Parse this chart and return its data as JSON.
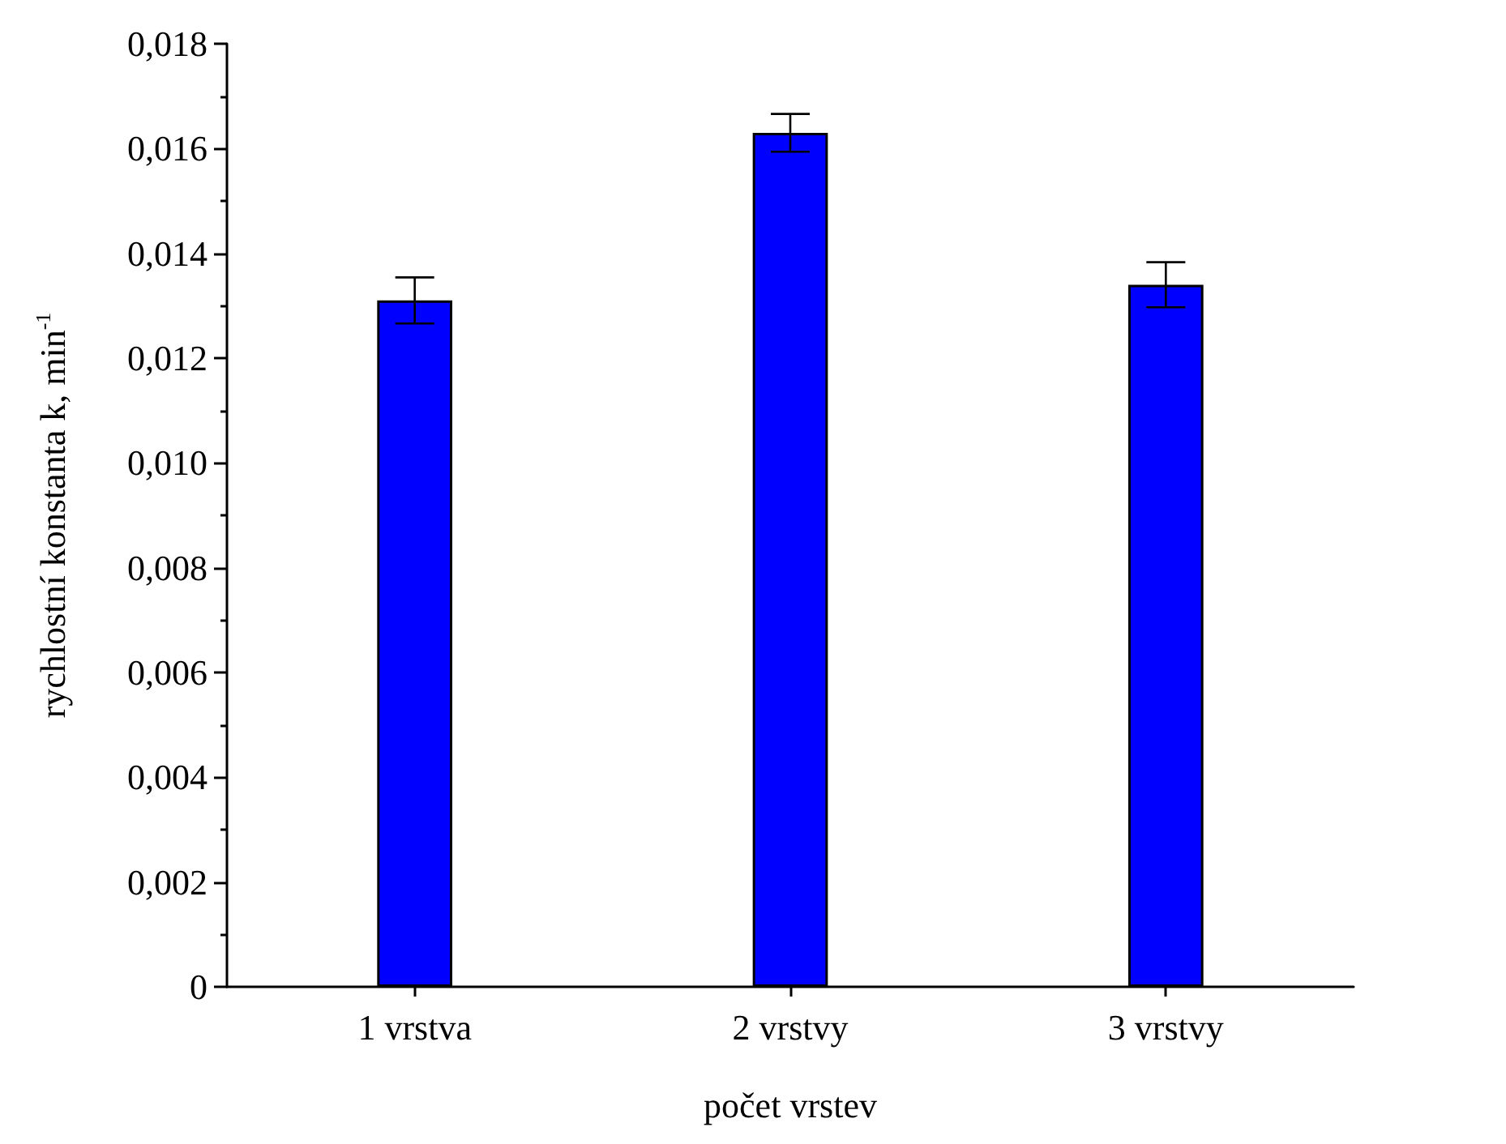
{
  "chart_data": {
    "type": "bar",
    "xlabel": "počet vrstev",
    "ylabel": "rychlostní konstanta k, min$^{-1}$",
    "categories": [
      "1 vrstva",
      "2 vrstvy",
      "3 vrstvy"
    ],
    "values": [
      0.0131,
      0.0163,
      0.0134
    ],
    "errors": [
      0.00044,
      0.00036,
      0.00043
    ],
    "color": "#0000ff",
    "ylim": [
      0,
      0.018
    ],
    "yticks": [
      {
        "value": 0,
        "label": "0"
      },
      {
        "value": 0.002,
        "label": "0,002"
      },
      {
        "value": 0.004,
        "label": "0,004"
      },
      {
        "value": 0.006,
        "label": "0,006"
      },
      {
        "value": 0.008,
        "label": "0,008"
      },
      {
        "value": 0.01,
        "label": "0,010"
      },
      {
        "value": 0.012,
        "label": "0,012"
      },
      {
        "value": 0.014,
        "label": "0,014"
      },
      {
        "value": 0.016,
        "label": "0,016"
      },
      {
        "value": 0.018,
        "label": "0,018"
      }
    ],
    "grid": false
  }
}
